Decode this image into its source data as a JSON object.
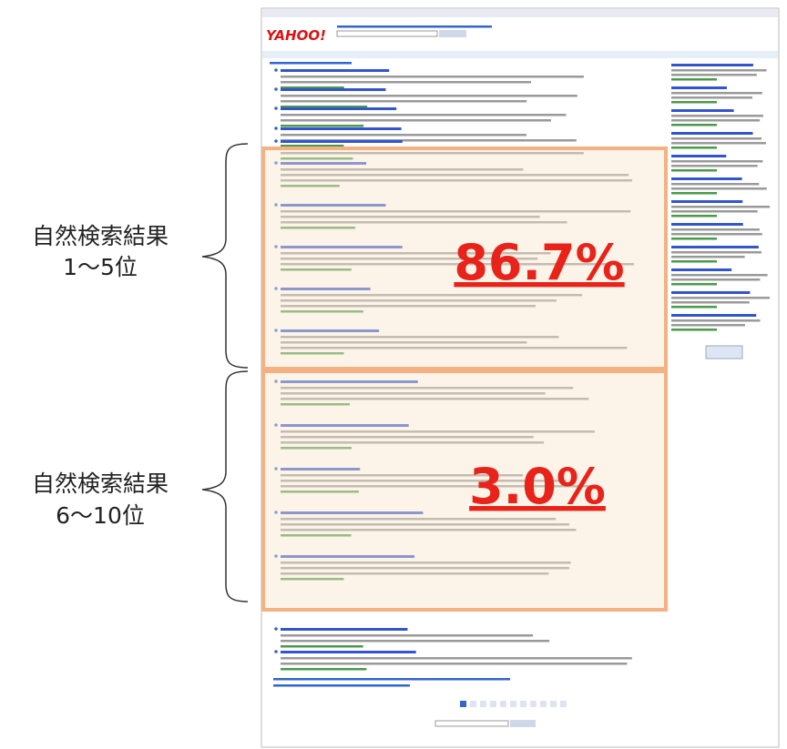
{
  "logo": "YAHOO!",
  "annotations": [
    {
      "label": [
        "自然検索結果",
        "1～5位"
      ],
      "share": "86.7%"
    },
    {
      "label": [
        "自然検索結果",
        "6～10位"
      ],
      "share": "3.0%"
    }
  ]
}
